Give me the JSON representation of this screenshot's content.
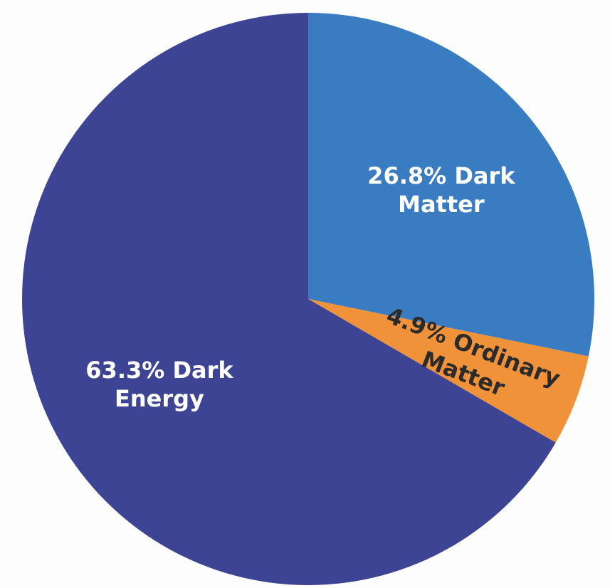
{
  "chart_data": {
    "type": "pie",
    "values": [
      26.8,
      4.9,
      63.3
    ],
    "value_labels": [
      "26.8% Dark Matter",
      "4.9% Ordinary Matter",
      "63.3% Dark Energy"
    ],
    "colors": [
      "#3a7cc2",
      "#f0923a",
      "#3d4494"
    ],
    "label_colors": [
      "#ffffff",
      "#2b2b2b",
      "#ffffff"
    ]
  }
}
